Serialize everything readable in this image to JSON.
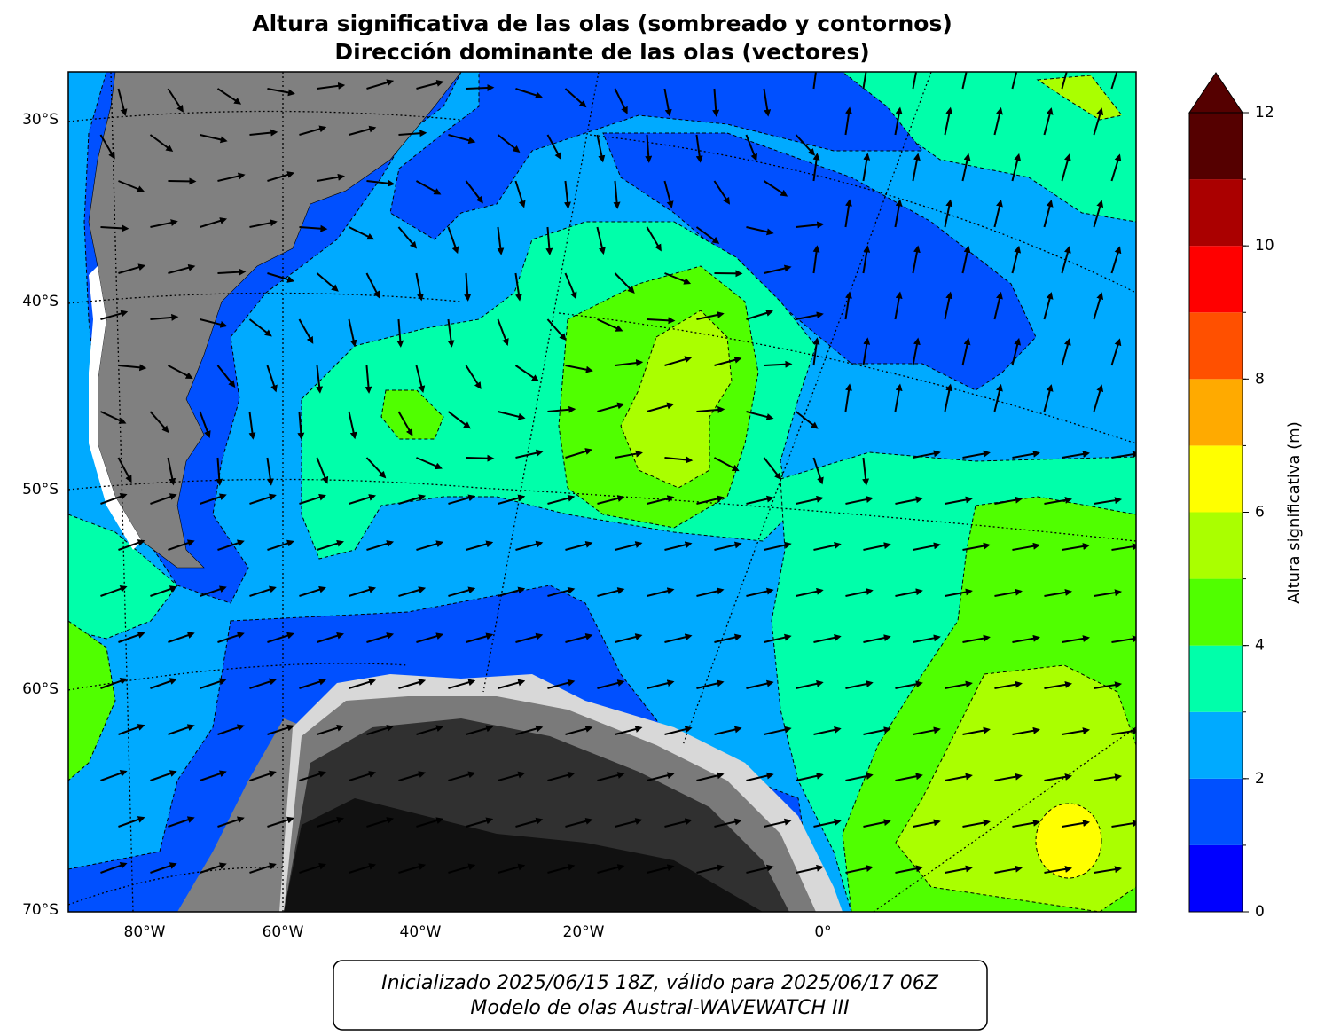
{
  "title": [
    "Altura significativa de las olas (sombreado y contornos)",
    "Dirección dominante de las olas (vectores)"
  ],
  "map": {
    "lat_labels": [
      "30°S",
      "40°S",
      "50°S",
      "60°S",
      "70°S"
    ],
    "lon_labels": [
      "80°W",
      "60°W",
      "40°W",
      "20°W",
      "0°"
    ]
  },
  "colorbar": {
    "label": "Altura significativa (m)",
    "range": [
      0,
      12
    ],
    "ticks": [
      0,
      2,
      4,
      6,
      8,
      10,
      12
    ],
    "levels": [
      0,
      1,
      2,
      3,
      4,
      5,
      6,
      7,
      8,
      9,
      10,
      11,
      12
    ],
    "colors": [
      "#0000ff",
      "#0050ff",
      "#00aaff",
      "#00ffaa",
      "#50ff00",
      "#aaff00",
      "#ffff00",
      "#ffaa00",
      "#ff5000",
      "#ff0000",
      "#aa0000",
      "#550000"
    ]
  },
  "footer": [
    "Inicializado 2025/06/15 18Z, válido para 2025/06/17 06Z",
    "Modelo de olas Austral-WAVEWATCH III"
  ]
}
